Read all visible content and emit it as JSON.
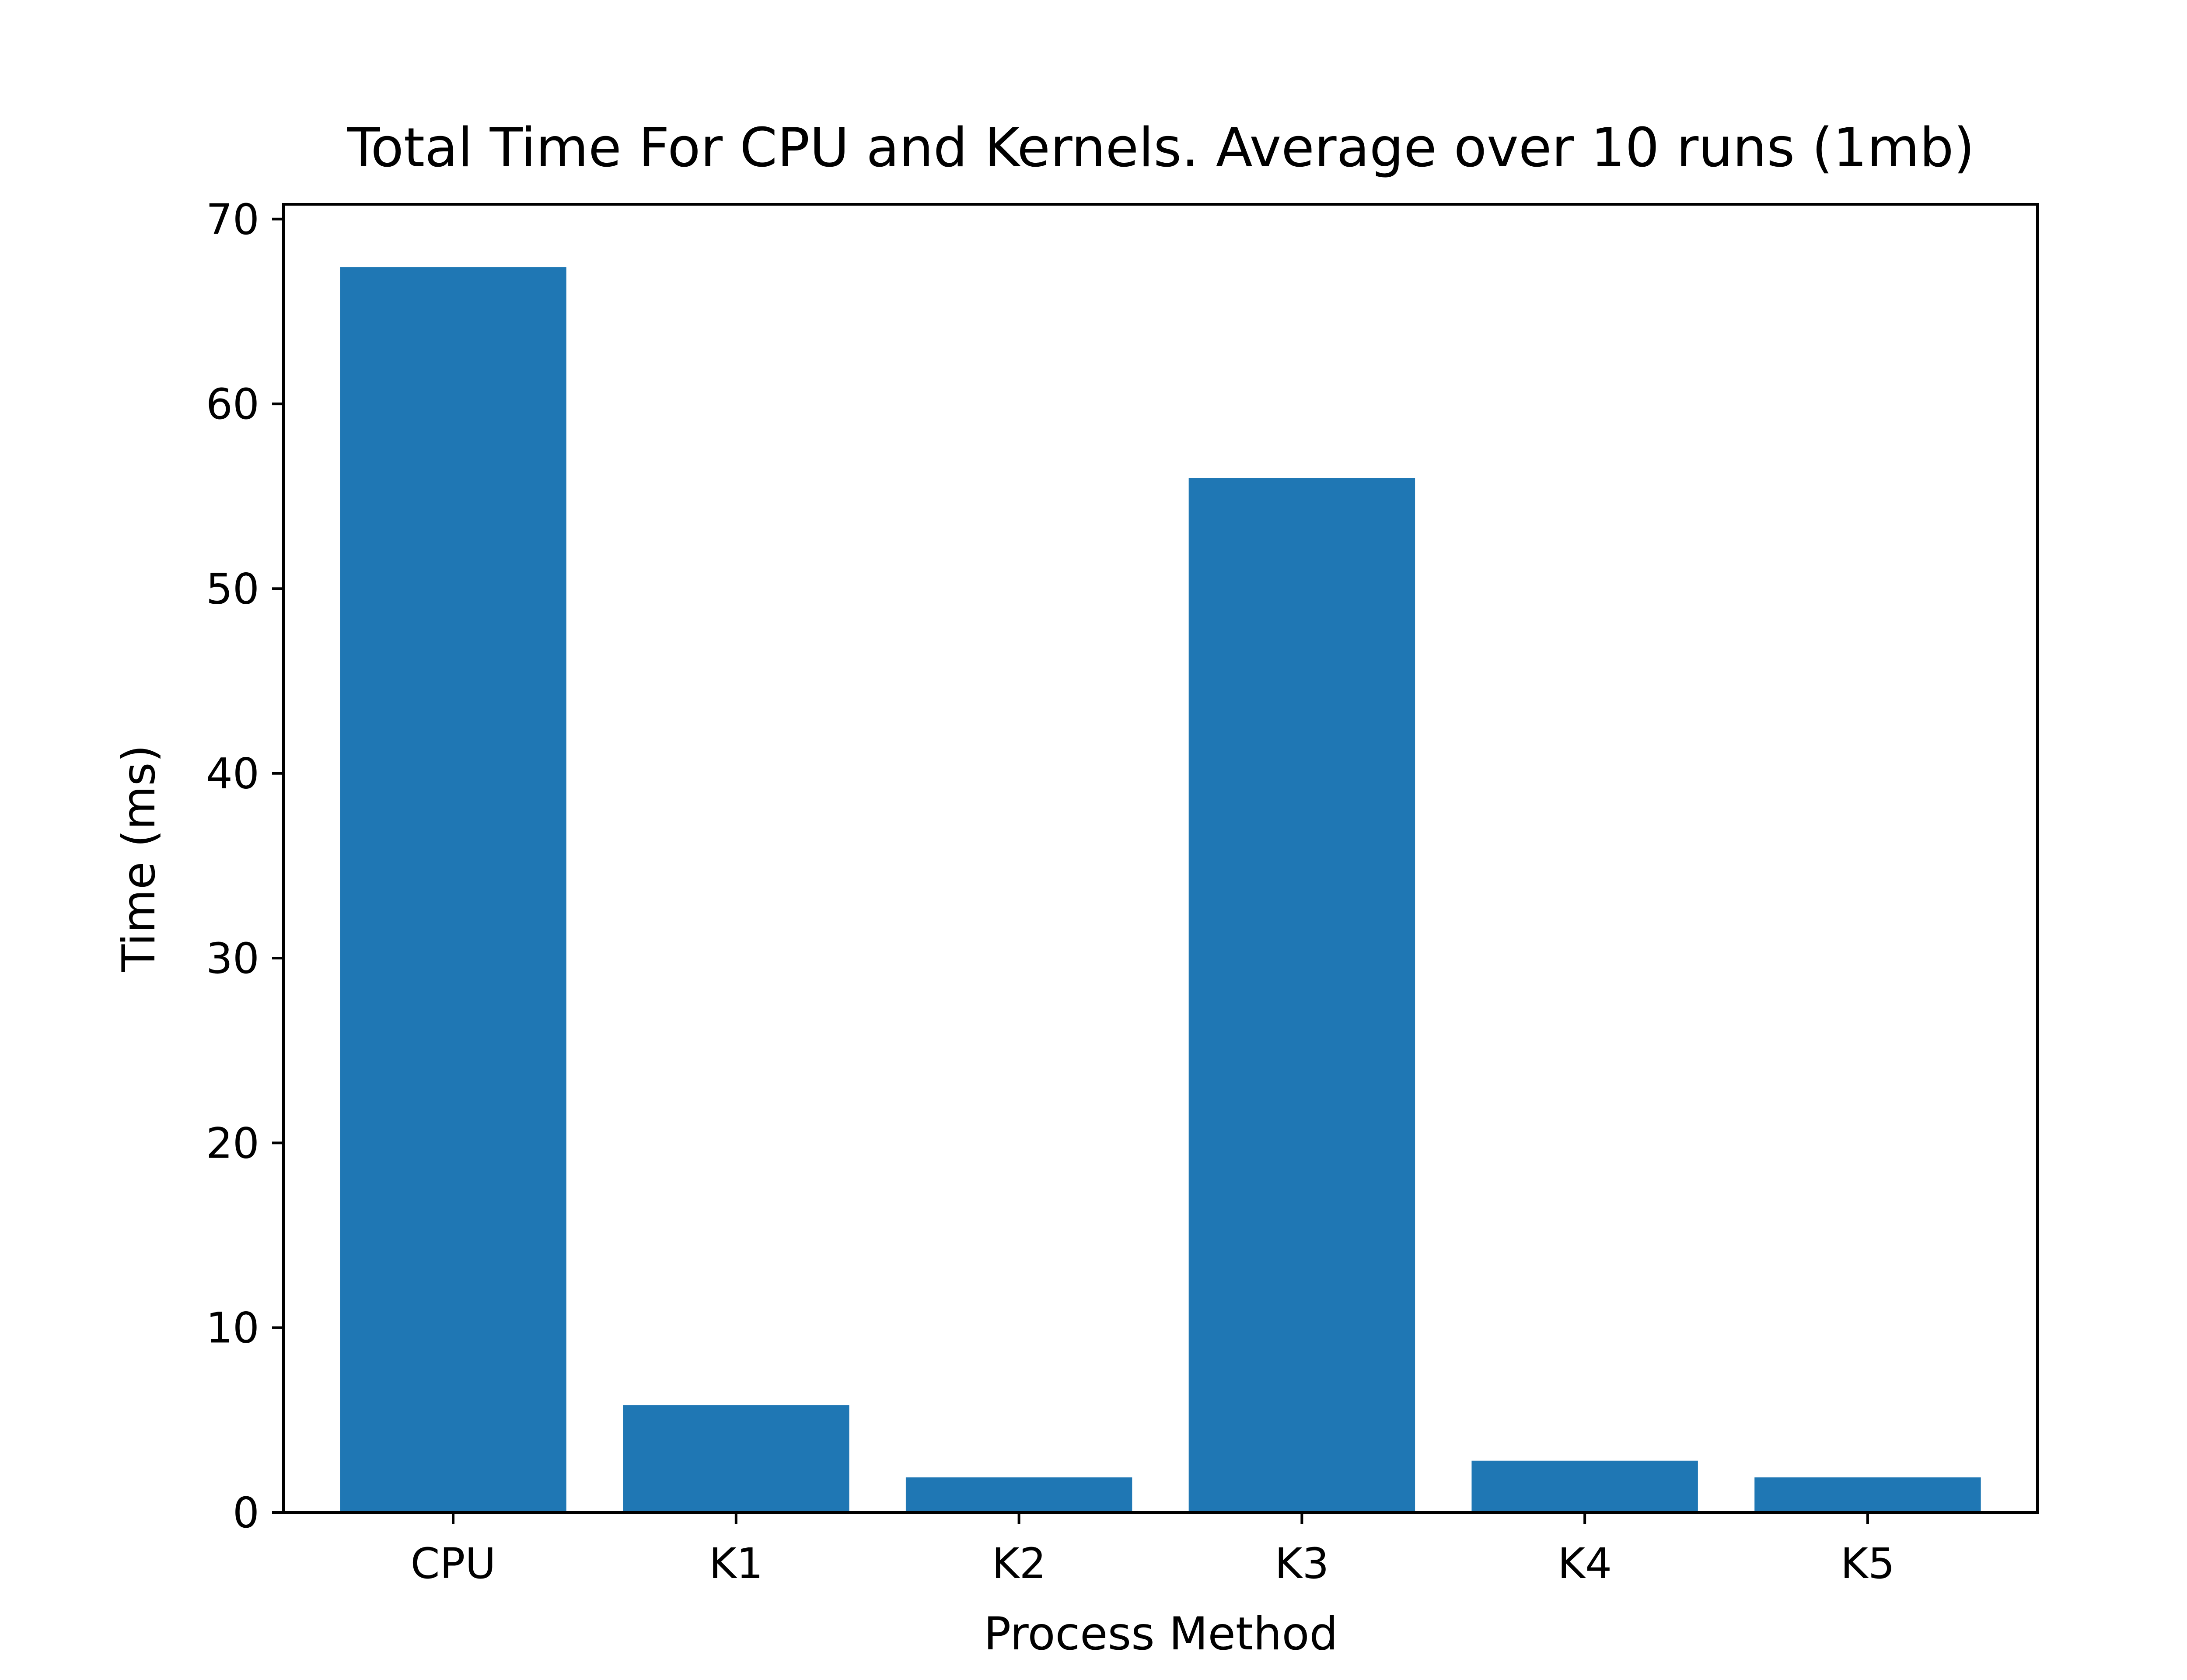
{
  "chart_data": {
    "type": "bar",
    "title": "Total Time For CPU and Kernels. Average over 10 runs (1mb)",
    "xlabel": "Process Method",
    "ylabel": "Time (ms)",
    "categories": [
      "CPU",
      "K1",
      "K2",
      "K3",
      "K4",
      "K5"
    ],
    "values": [
      67.4,
      5.8,
      1.9,
      56.0,
      2.8,
      1.9
    ],
    "ylim": [
      0,
      70.8
    ],
    "yticks": [
      0,
      10,
      20,
      30,
      40,
      50,
      60,
      70
    ],
    "ytick_labels": [
      "0",
      "10",
      "20",
      "30",
      "40",
      "50",
      "60",
      "70"
    ],
    "grid": false,
    "bar_color": "#1f77b4"
  }
}
